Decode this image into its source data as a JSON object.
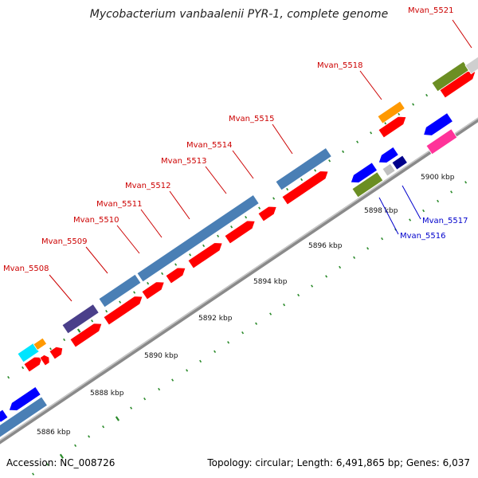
{
  "title": "Mycobacterium vanbaalenii PYR-1, complete genome",
  "footer": {
    "accession": "Accession: NC_008726",
    "summary": "Topology: circular; Length: 6,491,865 bp; Genes: 6,037"
  },
  "colors": {
    "backbone": "#8a8a8a",
    "forward_cds": "#ff0000",
    "gene_blue": "#4a7fb5",
    "label_forward": "#cc0000",
    "label_reverse": "#0000cc",
    "tick": "#2a8a2a"
  },
  "scale_labels": [
    "5886 kbp",
    "5888 kbp",
    "5890 kbp",
    "5892 kbp",
    "5894 kbp",
    "5896 kbp",
    "5898 kbp",
    "5900 kbp"
  ],
  "gene_labels": [
    {
      "text": "Mvan_5508",
      "strand": "forward"
    },
    {
      "text": "Mvan_5509",
      "strand": "forward"
    },
    {
      "text": "Mvan_5510",
      "strand": "forward"
    },
    {
      "text": "Mvan_5511",
      "strand": "forward"
    },
    {
      "text": "Mvan_5512",
      "strand": "forward"
    },
    {
      "text": "Mvan_5513",
      "strand": "forward"
    },
    {
      "text": "Mvan_5514",
      "strand": "forward"
    },
    {
      "text": "Mvan_5515",
      "strand": "forward"
    },
    {
      "text": "Mvan_5518",
      "strand": "forward"
    },
    {
      "text": "Mvan_5521",
      "strand": "forward"
    },
    {
      "text": "Mvan_5516",
      "strand": "reverse"
    },
    {
      "text": "Mvan_5517",
      "strand": "reverse"
    }
  ]
}
